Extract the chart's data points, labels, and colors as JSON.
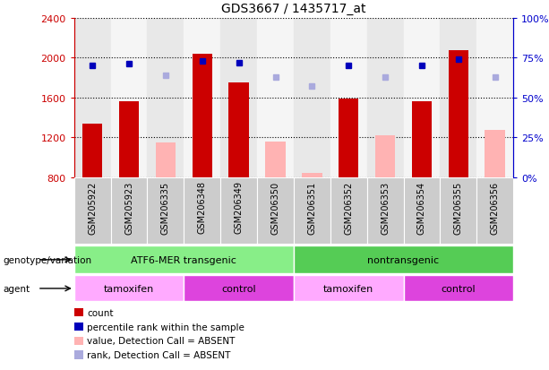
{
  "title": "GDS3667 / 1435717_at",
  "samples": [
    "GSM205922",
    "GSM205923",
    "GSM206335",
    "GSM206348",
    "GSM206349",
    "GSM206350",
    "GSM206351",
    "GSM206352",
    "GSM206353",
    "GSM206354",
    "GSM206355",
    "GSM206356"
  ],
  "count_values": [
    1340,
    1560,
    null,
    2040,
    1750,
    null,
    null,
    1590,
    null,
    1560,
    2070,
    null
  ],
  "absent_value_values": [
    null,
    null,
    1150,
    null,
    null,
    1160,
    840,
    null,
    1220,
    null,
    null,
    1270
  ],
  "percentile_rank_present": [
    70,
    71,
    null,
    73,
    72,
    null,
    null,
    70,
    null,
    70,
    74,
    null
  ],
  "percentile_rank_absent": [
    null,
    null,
    64,
    null,
    null,
    63,
    57,
    null,
    63,
    null,
    null,
    63
  ],
  "ylim_left": [
    800,
    2400
  ],
  "ylim_right": [
    0,
    100
  ],
  "yticks_left": [
    800,
    1200,
    1600,
    2000,
    2400
  ],
  "yticks_right": [
    0,
    25,
    50,
    75,
    100
  ],
  "left_axis_color": "#cc0000",
  "right_axis_color": "#0000cc",
  "bar_color_present": "#cc0000",
  "bar_color_absent": "#ffb3b3",
  "dot_color_present": "#0000bb",
  "dot_color_absent": "#aaaadd",
  "groups": [
    {
      "label": "ATF6-MER transgenic",
      "start": 0,
      "end": 6,
      "color": "#88ee88"
    },
    {
      "label": "nontransgenic",
      "start": 6,
      "end": 12,
      "color": "#55cc55"
    }
  ],
  "agents": [
    {
      "label": "tamoxifen",
      "start": 0,
      "end": 3,
      "color": "#ffaaff"
    },
    {
      "label": "control",
      "start": 3,
      "end": 6,
      "color": "#dd44dd"
    },
    {
      "label": "tamoxifen",
      "start": 6,
      "end": 9,
      "color": "#ffaaff"
    },
    {
      "label": "control",
      "start": 9,
      "end": 12,
      "color": "#dd44dd"
    }
  ],
  "legend_items": [
    {
      "label": "count",
      "color": "#cc0000"
    },
    {
      "label": "percentile rank within the sample",
      "color": "#0000bb"
    },
    {
      "label": "value, Detection Call = ABSENT",
      "color": "#ffb3b3"
    },
    {
      "label": "rank, Detection Call = ABSENT",
      "color": "#aaaadd"
    }
  ],
  "genotype_label": "genotype/variation",
  "agent_label": "agent",
  "xticklabel_bg": "#cccccc",
  "bar_width": 0.55
}
